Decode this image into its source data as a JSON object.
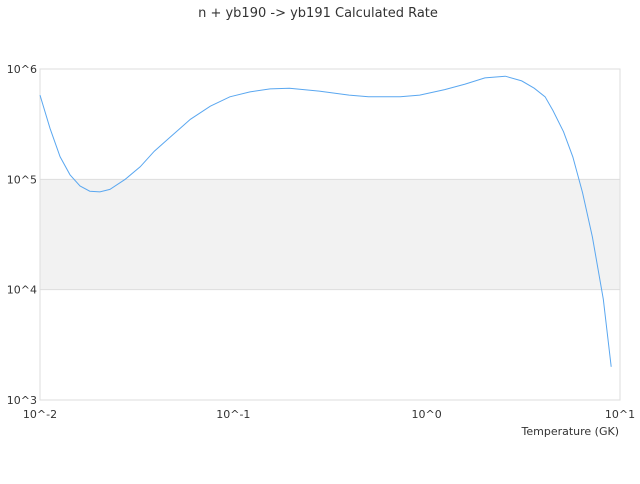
{
  "chart_data": {
    "type": "line",
    "title": "n + yb190 -> yb191 Calculated Rate",
    "xlabel": "Temperature (GK)",
    "ylabel": "",
    "xscale": "log",
    "yscale": "log",
    "xlim": [
      0.01,
      10
    ],
    "ylim": [
      1000,
      1000000
    ],
    "xticks": [
      {
        "value": 0.01,
        "label": "10^-2"
      },
      {
        "value": 0.1,
        "label": "10^-1"
      },
      {
        "value": 1,
        "label": "10^0"
      },
      {
        "value": 10,
        "label": "10^1"
      }
    ],
    "yticks": [
      {
        "value": 1000,
        "label": "10^3"
      },
      {
        "value": 10000,
        "label": "10^4"
      },
      {
        "value": 100000,
        "label": "10^5"
      },
      {
        "value": 1000000,
        "label": "10^6"
      }
    ],
    "grid": true,
    "shaded_band": [
      10000,
      100000
    ],
    "colors": {
      "line": "#5aa7f0",
      "band": "#f2f2f2",
      "grid": "#dddddd"
    },
    "series": [
      {
        "x": [
          0.01,
          0.01127,
          0.0127,
          0.0143,
          0.0161,
          0.0181,
          0.0204,
          0.023,
          0.0276,
          0.033,
          0.039,
          0.047,
          0.06,
          0.076,
          0.096,
          0.122,
          0.155,
          0.195,
          0.278,
          0.397,
          0.5,
          0.73,
          0.92,
          1.24,
          1.58,
          2.0,
          2.55,
          3.1,
          3.6,
          4.1,
          4.5,
          5.1,
          5.7,
          6.4,
          7.2,
          8.2,
          9.0
        ],
        "y": [
          580000,
          290000,
          160000,
          110000,
          87000,
          78000,
          77000,
          81000,
          100000,
          130000,
          180000,
          240000,
          350000,
          460000,
          560000,
          620000,
          660000,
          670000,
          630000,
          580000,
          560000,
          560000,
          580000,
          650000,
          730000,
          830000,
          860000,
          780000,
          670000,
          560000,
          420000,
          270000,
          160000,
          76000,
          30000,
          8200,
          2000
        ]
      }
    ]
  }
}
